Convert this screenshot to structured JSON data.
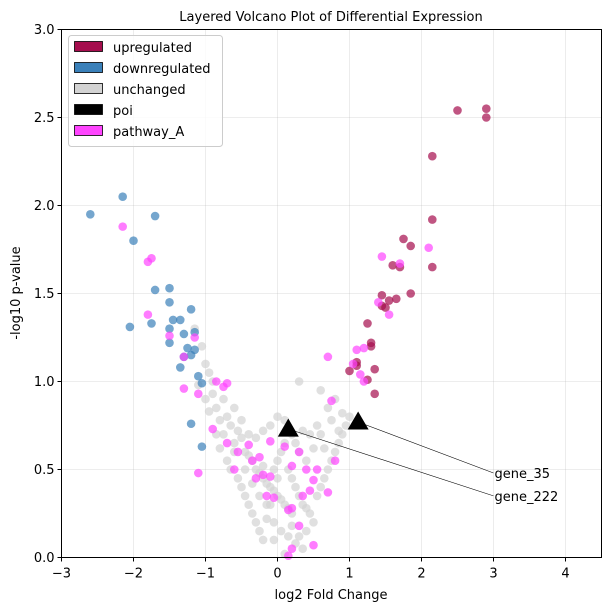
{
  "chart_data": {
    "type": "scatter",
    "title": "Layered Volcano Plot of Differential Expression",
    "xlabel": "log2 Fold Change",
    "ylabel": "-log10 p-value",
    "xlim": [
      -3,
      4.5
    ],
    "ylim": [
      0,
      3
    ],
    "xticks": [
      -3,
      -2,
      -1,
      0,
      1,
      2,
      3,
      4
    ],
    "yticks": [
      0.0,
      0.5,
      1.0,
      1.5,
      2.0,
      2.5,
      3.0
    ],
    "xtick_labels": [
      "−3",
      "−2",
      "−1",
      "0",
      "1",
      "2",
      "3",
      "4"
    ],
    "ytick_labels": [
      "0.0",
      "0.5",
      "1.0",
      "1.5",
      "2.0",
      "2.5",
      "3.0"
    ],
    "grid": true,
    "legend_position": "top-left",
    "series": [
      {
        "name": "unchanged",
        "color": "#d3d3d3",
        "marker": "circle",
        "points": [
          [
            -1.15,
            1.3
          ],
          [
            -1.05,
            1.2
          ],
          [
            -1.0,
            1.1
          ],
          [
            -0.95,
            1.05
          ],
          [
            -0.9,
            1.0
          ],
          [
            -1.1,
            0.98
          ],
          [
            -0.9,
            0.93
          ],
          [
            -1.0,
            0.9
          ],
          [
            -0.85,
            0.85
          ],
          [
            -0.95,
            0.83
          ],
          [
            -0.75,
            0.9
          ],
          [
            -0.7,
            0.8
          ],
          [
            -0.65,
            0.75
          ],
          [
            -0.55,
            0.72
          ],
          [
            -0.5,
            0.68
          ],
          [
            -0.6,
            0.65
          ],
          [
            -0.45,
            0.6
          ],
          [
            -0.4,
            0.58
          ],
          [
            -0.35,
            0.55
          ],
          [
            -0.3,
            0.5
          ],
          [
            -0.25,
            0.48
          ],
          [
            -0.2,
            0.45
          ],
          [
            -0.15,
            0.42
          ],
          [
            -0.1,
            0.4
          ],
          [
            -0.05,
            0.38
          ],
          [
            0.0,
            0.35
          ],
          [
            0.05,
            0.33
          ],
          [
            0.1,
            0.3
          ],
          [
            0.15,
            0.28
          ],
          [
            0.2,
            0.25
          ],
          [
            -0.8,
            0.62
          ],
          [
            -0.7,
            0.55
          ],
          [
            -0.65,
            0.5
          ],
          [
            -0.55,
            0.45
          ],
          [
            -0.5,
            0.4
          ],
          [
            -0.45,
            0.35
          ],
          [
            -0.4,
            0.3
          ],
          [
            -0.35,
            0.25
          ],
          [
            -0.3,
            0.2
          ],
          [
            -0.25,
            0.15
          ],
          [
            -0.2,
            0.1
          ],
          [
            -0.15,
            0.22
          ],
          [
            -0.1,
            0.3
          ],
          [
            -0.05,
            0.5
          ],
          [
            0.0,
            0.55
          ],
          [
            0.05,
            0.6
          ],
          [
            0.1,
            0.65
          ],
          [
            0.15,
            0.5
          ],
          [
            0.2,
            0.45
          ],
          [
            0.25,
            0.4
          ],
          [
            0.3,
            0.35
          ],
          [
            0.35,
            0.3
          ],
          [
            0.4,
            0.28
          ],
          [
            0.45,
            0.25
          ],
          [
            0.5,
            0.2
          ],
          [
            0.55,
            0.35
          ],
          [
            0.6,
            0.4
          ],
          [
            0.65,
            0.45
          ],
          [
            0.7,
            0.5
          ],
          [
            0.75,
            0.55
          ],
          [
            0.8,
            0.6
          ],
          [
            0.85,
            0.65
          ],
          [
            0.9,
            0.7
          ],
          [
            0.95,
            0.75
          ],
          [
            1.0,
            0.8
          ],
          [
            0.6,
            0.7
          ],
          [
            0.65,
            0.62
          ],
          [
            0.5,
            0.62
          ],
          [
            0.4,
            0.55
          ],
          [
            0.3,
            0.6
          ],
          [
            0.25,
            0.65
          ],
          [
            0.45,
            0.7
          ],
          [
            0.55,
            0.75
          ],
          [
            0.7,
            0.85
          ],
          [
            0.8,
            0.9
          ],
          [
            0.3,
            1.0
          ],
          [
            0.6,
            0.95
          ],
          [
            0.9,
            0.82
          ],
          [
            0.75,
            0.78
          ],
          [
            0.85,
            0.72
          ],
          [
            -0.6,
            0.85
          ],
          [
            -0.5,
            0.78
          ],
          [
            -0.4,
            0.7
          ],
          [
            -0.3,
            0.68
          ],
          [
            -0.2,
            0.72
          ],
          [
            -0.1,
            0.75
          ],
          [
            0.0,
            0.8
          ],
          [
            0.1,
            0.78
          ],
          [
            0.2,
            0.7
          ],
          [
            0.35,
            0.72
          ],
          [
            -0.75,
            0.7
          ],
          [
            -0.85,
            0.7
          ],
          [
            -0.8,
            0.78
          ],
          [
            -0.6,
            0.6
          ],
          [
            -0.45,
            0.5
          ],
          [
            -0.35,
            0.42
          ],
          [
            -0.25,
            0.35
          ],
          [
            -0.15,
            0.3
          ],
          [
            -0.05,
            0.2
          ],
          [
            0.05,
            0.15
          ],
          [
            0.15,
            0.12
          ],
          [
            0.25,
            0.08
          ],
          [
            0.2,
            0.18
          ],
          [
            0.3,
            0.12
          ],
          [
            0.4,
            0.15
          ],
          [
            0.1,
            0.02
          ],
          [
            -0.05,
            0.1
          ],
          [
            0.35,
            0.05
          ],
          [
            -0.2,
            0.52
          ],
          [
            0.0,
            0.45
          ]
        ]
      },
      {
        "name": "upregulated",
        "color": "#a50d4d",
        "marker": "circle",
        "points": [
          [
            2.9,
            2.55
          ],
          [
            2.9,
            2.5
          ],
          [
            2.5,
            2.54
          ],
          [
            2.15,
            2.28
          ],
          [
            2.15,
            1.92
          ],
          [
            1.75,
            1.81
          ],
          [
            1.85,
            1.77
          ],
          [
            2.15,
            1.65
          ],
          [
            1.6,
            1.66
          ],
          [
            1.7,
            1.65
          ],
          [
            1.65,
            1.47
          ],
          [
            1.85,
            1.5
          ],
          [
            1.45,
            1.49
          ],
          [
            1.55,
            1.46
          ],
          [
            1.45,
            1.43
          ],
          [
            1.5,
            1.42
          ],
          [
            1.25,
            1.33
          ],
          [
            1.3,
            1.22
          ],
          [
            1.3,
            1.2
          ],
          [
            1.1,
            1.11
          ],
          [
            1.1,
            1.09
          ],
          [
            1.35,
            1.07
          ],
          [
            1.0,
            1.06
          ],
          [
            1.25,
            1.01
          ],
          [
            1.35,
            0.93
          ]
        ]
      },
      {
        "name": "downregulated",
        "color": "#3a80b9",
        "marker": "circle",
        "points": [
          [
            -2.15,
            2.05
          ],
          [
            -2.6,
            1.95
          ],
          [
            -1.7,
            1.94
          ],
          [
            -2.0,
            1.8
          ],
          [
            -1.7,
            1.52
          ],
          [
            -1.5,
            1.53
          ],
          [
            -1.5,
            1.45
          ],
          [
            -1.2,
            1.41
          ],
          [
            -1.45,
            1.35
          ],
          [
            -1.35,
            1.35
          ],
          [
            -2.05,
            1.31
          ],
          [
            -1.75,
            1.33
          ],
          [
            -1.5,
            1.3
          ],
          [
            -1.3,
            1.27
          ],
          [
            -1.15,
            1.28
          ],
          [
            -1.5,
            1.22
          ],
          [
            -1.25,
            1.19
          ],
          [
            -1.15,
            1.18
          ],
          [
            -1.3,
            1.14
          ],
          [
            -1.2,
            1.15
          ],
          [
            -1.35,
            1.08
          ],
          [
            -1.1,
            1.03
          ],
          [
            -1.05,
            0.99
          ],
          [
            -1.2,
            0.76
          ],
          [
            -1.05,
            0.63
          ]
        ]
      },
      {
        "name": "pathway_A",
        "color": "#ff44ff",
        "marker": "circle",
        "points": [
          [
            -2.15,
            1.88
          ],
          [
            -1.8,
            1.68
          ],
          [
            -1.75,
            1.7
          ],
          [
            -1.8,
            1.38
          ],
          [
            -1.5,
            1.26
          ],
          [
            -1.15,
            1.25
          ],
          [
            -1.3,
            1.14
          ],
          [
            -0.85,
            1.0
          ],
          [
            -0.7,
            0.99
          ],
          [
            -0.75,
            0.97
          ],
          [
            -1.3,
            0.96
          ],
          [
            -1.1,
            0.93
          ],
          [
            -0.9,
            0.73
          ],
          [
            -0.7,
            0.65
          ],
          [
            -0.4,
            0.64
          ],
          [
            -0.6,
            0.5
          ],
          [
            -0.55,
            0.6
          ],
          [
            -0.35,
            0.55
          ],
          [
            -0.25,
            0.57
          ],
          [
            -0.2,
            0.47
          ],
          [
            -0.1,
            0.46
          ],
          [
            -0.3,
            0.45
          ],
          [
            -0.1,
            0.66
          ],
          [
            0.1,
            0.63
          ],
          [
            0.2,
            0.52
          ],
          [
            0.3,
            0.6
          ],
          [
            0.4,
            0.5
          ],
          [
            0.55,
            0.5
          ],
          [
            0.8,
            0.55
          ],
          [
            0.5,
            0.44
          ],
          [
            0.45,
            0.38
          ],
          [
            0.7,
            0.37
          ],
          [
            0.35,
            0.35
          ],
          [
            0.2,
            0.28
          ],
          [
            0.3,
            0.18
          ],
          [
            -0.05,
            0.34
          ],
          [
            -0.15,
            0.35
          ],
          [
            -1.1,
            0.48
          ],
          [
            0.15,
            0.27
          ],
          [
            0.2,
            0.05
          ],
          [
            0.5,
            0.07
          ],
          [
            0.15,
            0.01
          ],
          [
            0.7,
            1.14
          ],
          [
            1.1,
            1.18
          ],
          [
            1.2,
            1.19
          ],
          [
            1.05,
            1.1
          ],
          [
            1.15,
            1.04
          ],
          [
            1.2,
            1.0
          ],
          [
            0.75,
            0.89
          ],
          [
            1.45,
            1.71
          ],
          [
            1.7,
            1.67
          ],
          [
            2.1,
            1.76
          ],
          [
            1.55,
            1.38
          ],
          [
            1.4,
            1.45
          ]
        ]
      },
      {
        "name": "poi",
        "color": "#000000",
        "marker": "triangle",
        "points": [
          [
            0.15,
            0.73
          ],
          [
            1.12,
            0.77
          ]
        ]
      }
    ],
    "annotations": [
      {
        "text": "gene_35",
        "point": [
          1.12,
          0.77
        ],
        "text_at": [
          3.0,
          0.48
        ]
      },
      {
        "text": "gene_222",
        "point": [
          0.15,
          0.73
        ],
        "text_at": [
          3.0,
          0.35
        ]
      }
    ]
  },
  "legend": {
    "items": [
      {
        "label": "upregulated",
        "color": "#a50d4d"
      },
      {
        "label": "downregulated",
        "color": "#3a80b9"
      },
      {
        "label": "unchanged",
        "color": "#d3d3d3"
      },
      {
        "label": "poi",
        "color": "#000000"
      },
      {
        "label": "pathway_A",
        "color": "#ff44ff"
      }
    ]
  }
}
